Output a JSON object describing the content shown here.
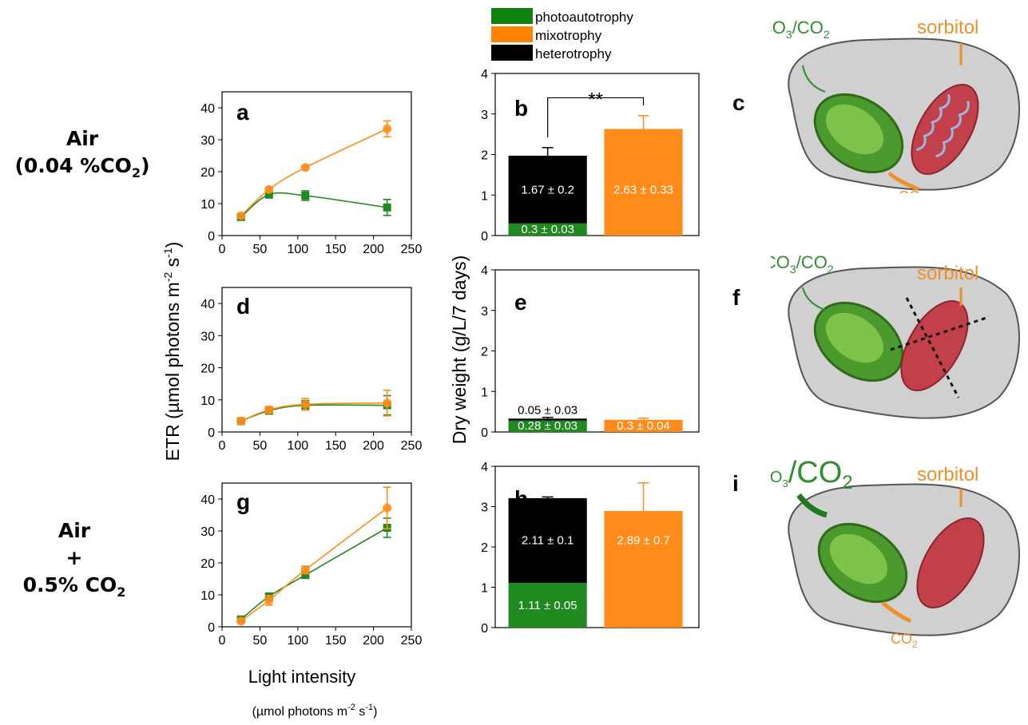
{
  "conditions": {
    "air": {
      "line1": "Air",
      "line2": "(0.04 %CO",
      "line2_sub": "2",
      "line2_end": ")"
    },
    "co2": {
      "line1": "Air",
      "line2": "+",
      "line3": "0.5% CO",
      "line3_sub": "2"
    }
  },
  "legend": [
    {
      "label": "photoautotrophy",
      "color": "#108210"
    },
    {
      "label": "mixotrophy",
      "color": "#ff8200"
    },
    {
      "label": "heterotrophy",
      "color": "#000000"
    }
  ],
  "colors": {
    "photo": "#1f8a1f",
    "mixo": "#ff8c1a",
    "hetero": "#000000",
    "cell": "#cfcfcf"
  },
  "axes": {
    "etr_ylabel": "ETR (µmol photons m",
    "etr_ylabel_sup1": "-2",
    "etr_ylabel_mid": " s",
    "etr_ylabel_sup2": "-1",
    "etr_ylabel_end": ")",
    "dw_ylabel": "Dry weight (g/L/7 days)",
    "xlabel": "Light intensity",
    "xunit": "(µmol photons m",
    "xunit_sup1": "-2",
    "xunit_mid": " s",
    "xunit_sup2": "-1",
    "xunit_end": ")"
  },
  "chart_data": [
    {
      "panel": "a",
      "type": "line",
      "x": [
        25,
        62,
        110,
        218
      ],
      "xlim": [
        0,
        250
      ],
      "xticks": [
        0,
        50,
        100,
        150,
        200,
        250
      ],
      "ylim": [
        0,
        45
      ],
      "yticks": [
        0,
        10,
        20,
        30,
        40
      ],
      "series": [
        {
          "values": [
            5.8,
            12.8,
            12.5,
            8.8
          ],
          "err": [
            0.8,
            0.8,
            1.5,
            2.5
          ],
          "color": "#1f8a1f",
          "marker": "square"
        },
        {
          "values": [
            6.2,
            14.4,
            21.3,
            33.4
          ],
          "err": [
            0.6,
            0.6,
            0.5,
            2.5
          ],
          "color": "#ff8c1a",
          "marker": "circle"
        }
      ]
    },
    {
      "panel": "d",
      "type": "line",
      "x": [
        25,
        62,
        110,
        218
      ],
      "xlim": [
        0,
        250
      ],
      "xticks": [
        0,
        50,
        100,
        150,
        200,
        250
      ],
      "ylim": [
        0,
        45
      ],
      "yticks": [
        0,
        10,
        20,
        30,
        40
      ],
      "series": [
        {
          "values": [
            3.4,
            6.6,
            8.3,
            8.3
          ],
          "err": [
            1.0,
            1.0,
            1.5,
            3.0
          ],
          "color": "#1f8a1f",
          "marker": "square"
        },
        {
          "values": [
            3.4,
            6.9,
            8.6,
            9.0
          ],
          "err": [
            1.0,
            1.0,
            1.8,
            4.0
          ],
          "color": "#ff8c1a",
          "marker": "circle"
        }
      ]
    },
    {
      "panel": "g",
      "type": "line",
      "x": [
        25,
        62,
        110,
        218
      ],
      "xlim": [
        0,
        250
      ],
      "xticks": [
        0,
        50,
        100,
        150,
        200,
        250
      ],
      "ylim": [
        0,
        45
      ],
      "yticks": [
        0,
        10,
        20,
        30,
        40
      ],
      "series": [
        {
          "values": [
            2.3,
            9.5,
            16.2,
            31.0
          ],
          "err": [
            0.6,
            0.8,
            1.0,
            3.0
          ],
          "color": "#1f8a1f",
          "marker": "square"
        },
        {
          "values": [
            1.8,
            8.3,
            17.8,
            37.2
          ],
          "err": [
            0.6,
            1.5,
            1.2,
            6.5
          ],
          "color": "#ff8c1a",
          "marker": "circle"
        }
      ]
    },
    {
      "panel": "b",
      "type": "bar",
      "ylim": [
        0,
        4
      ],
      "yticks": [
        0,
        1,
        2,
        3,
        4
      ],
      "stack": {
        "photo": 0.3,
        "hetero": 1.67,
        "total": 1.97,
        "err": 0.2,
        "photo_label": "0.3 ± 0.03",
        "hetero_label": "1.67 ± 0.2"
      },
      "mixo": {
        "value": 2.63,
        "err": 0.33,
        "label": "2.63 ± 0.33"
      },
      "significance": "**"
    },
    {
      "panel": "e",
      "type": "bar",
      "ylim": [
        0,
        4
      ],
      "yticks": [
        0,
        1,
        2,
        3,
        4
      ],
      "stack": {
        "photo": 0.28,
        "hetero": 0.05,
        "total": 0.33,
        "err": 0.03,
        "photo_label": "0.28 ± 0.03",
        "hetero_label": "0.05 ± 0.03"
      },
      "mixo": {
        "value": 0.3,
        "err": 0.04,
        "label": "0.3 ± 0.04"
      }
    },
    {
      "panel": "h",
      "type": "bar",
      "ylim": [
        0,
        4
      ],
      "yticks": [
        0,
        1,
        2,
        3,
        4
      ],
      "stack": {
        "photo": 1.11,
        "hetero": 2.11,
        "total": 3.21,
        "err": 0.03,
        "photo_label": "1.11 ± 0.05",
        "hetero_label": "2.11 ± 0.1"
      },
      "mixo": {
        "value": 2.89,
        "err": 0.7,
        "label": "2.89 ± 0.7"
      }
    }
  ],
  "diagrams": [
    {
      "panel": "c",
      "inorganic": "HCO",
      "inorganic_sub": "3",
      "inorganic_end": "/CO",
      "inorganic_sub2": "2",
      "organic": "sorbitol",
      "respired": "CO",
      "respired_sub": "2"
    },
    {
      "panel": "f",
      "inorganic": "HCO",
      "inorganic_sub": "3",
      "inorganic_end": "/CO",
      "inorganic_sub2": "2",
      "organic": "sorbitol"
    },
    {
      "panel": "i",
      "inorganic": "HCO",
      "inorganic_sub": "3",
      "inorganic_end": "/CO",
      "inorganic_sub2": "2",
      "organic": "sorbitol",
      "respired": "CO",
      "respired_sub": "2"
    }
  ]
}
